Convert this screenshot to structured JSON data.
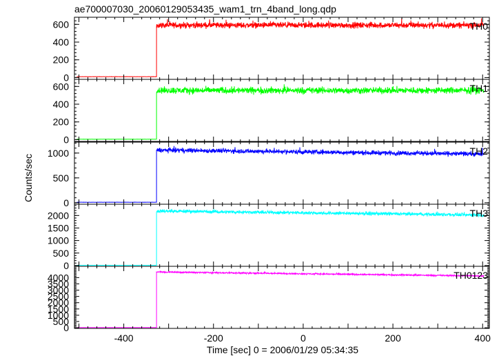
{
  "title": "ae700007030_20060129053435_wam1_trn_4band_long.qdp",
  "xlabel": "Time [sec] 0 = 2006/01/29 05:34:35",
  "ylabel": "Counts/sec",
  "chart_data": [
    {
      "type": "line",
      "name": "TH0",
      "color": "#ff0000",
      "xlim": [
        -510,
        415
      ],
      "ylim": [
        -20,
        680
      ],
      "yticks": [
        0,
        200,
        400,
        600
      ],
      "pre_level": 10,
      "post_level": 590,
      "post_noise": 25,
      "onset": -327
    },
    {
      "type": "line",
      "name": "TH1",
      "color": "#00ff00",
      "xlim": [
        -510,
        415
      ],
      "ylim": [
        -20,
        680
      ],
      "yticks": [
        0,
        200,
        400,
        600
      ],
      "pre_level": 5,
      "post_level": 555,
      "post_noise": 28,
      "onset": -327
    },
    {
      "type": "line",
      "name": "TH2",
      "color": "#0000ff",
      "xlim": [
        -510,
        415
      ],
      "ylim": [
        -30,
        1220
      ],
      "yticks": [
        0,
        500,
        1000
      ],
      "pre_level": 10,
      "post_level": 1060,
      "post_end": 980,
      "post_noise": 35,
      "onset": -327
    },
    {
      "type": "line",
      "name": "TH3",
      "color": "#00ffff",
      "xlim": [
        -510,
        415
      ],
      "ylim": [
        -30,
        2450
      ],
      "yticks": [
        0,
        500,
        1000,
        1500,
        2000
      ],
      "pre_level": 10,
      "post_level": 2180,
      "post_end": 2020,
      "post_noise": 50,
      "onset": -327
    },
    {
      "type": "line",
      "name": "TH0123",
      "color": "#ff00ff",
      "xlim": [
        -510,
        415
      ],
      "ylim": [
        -50,
        4900
      ],
      "yticks": [
        0,
        500,
        1000,
        1500,
        2000,
        2500,
        3000,
        3500,
        4000
      ],
      "pre_level": 20,
      "post_level": 4450,
      "post_end": 4130,
      "post_noise": 45,
      "onset": -327
    }
  ],
  "xticks": [
    -400,
    -200,
    0,
    200,
    400
  ]
}
